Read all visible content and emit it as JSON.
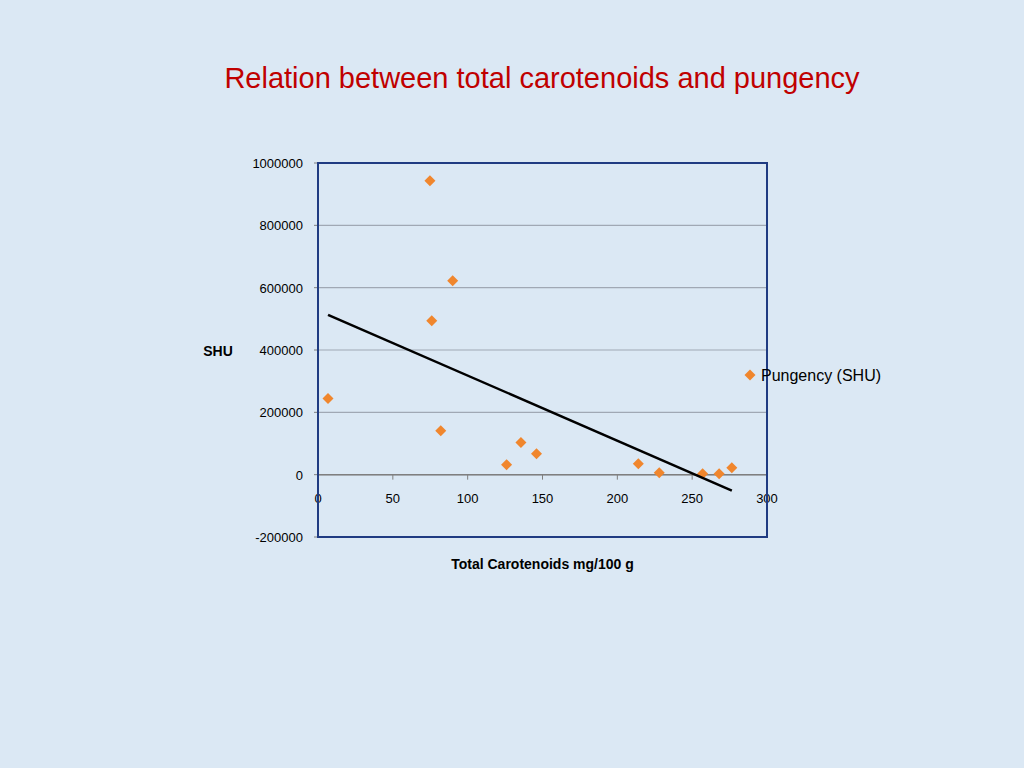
{
  "chart_data": {
    "type": "scatter",
    "title": "Relation between total carotenoids and pungency",
    "x_label": "Total Carotenoids mg/100 g",
    "y_label": "SHU",
    "x": [
      6.7,
      74.8,
      76,
      90,
      82,
      126,
      135.6,
      146,
      214,
      228,
      257,
      268,
      276.5
    ],
    "series": [
      {
        "name": "Pungency (SHU)",
        "color": "#f0862d",
        "marker": "diamond",
        "values": [
          244000,
          943000,
          494000,
          622000,
          141000,
          32000,
          103000,
          67000,
          35000,
          6000,
          3000,
          3000,
          22000
        ]
      }
    ],
    "trend_line": {
      "color": "#000000",
      "x": [
        6.7,
        276.5
      ],
      "values": [
        513000,
        -51000
      ]
    },
    "xlim": [
      0,
      300
    ],
    "xticks": [
      0,
      50,
      100,
      150,
      200,
      250,
      300
    ],
    "ylim": [
      -200000,
      1000000
    ],
    "yticks": [
      -200000,
      0,
      200000,
      400000,
      600000,
      800000,
      1000000
    ],
    "grid": true,
    "legend": "right"
  }
}
